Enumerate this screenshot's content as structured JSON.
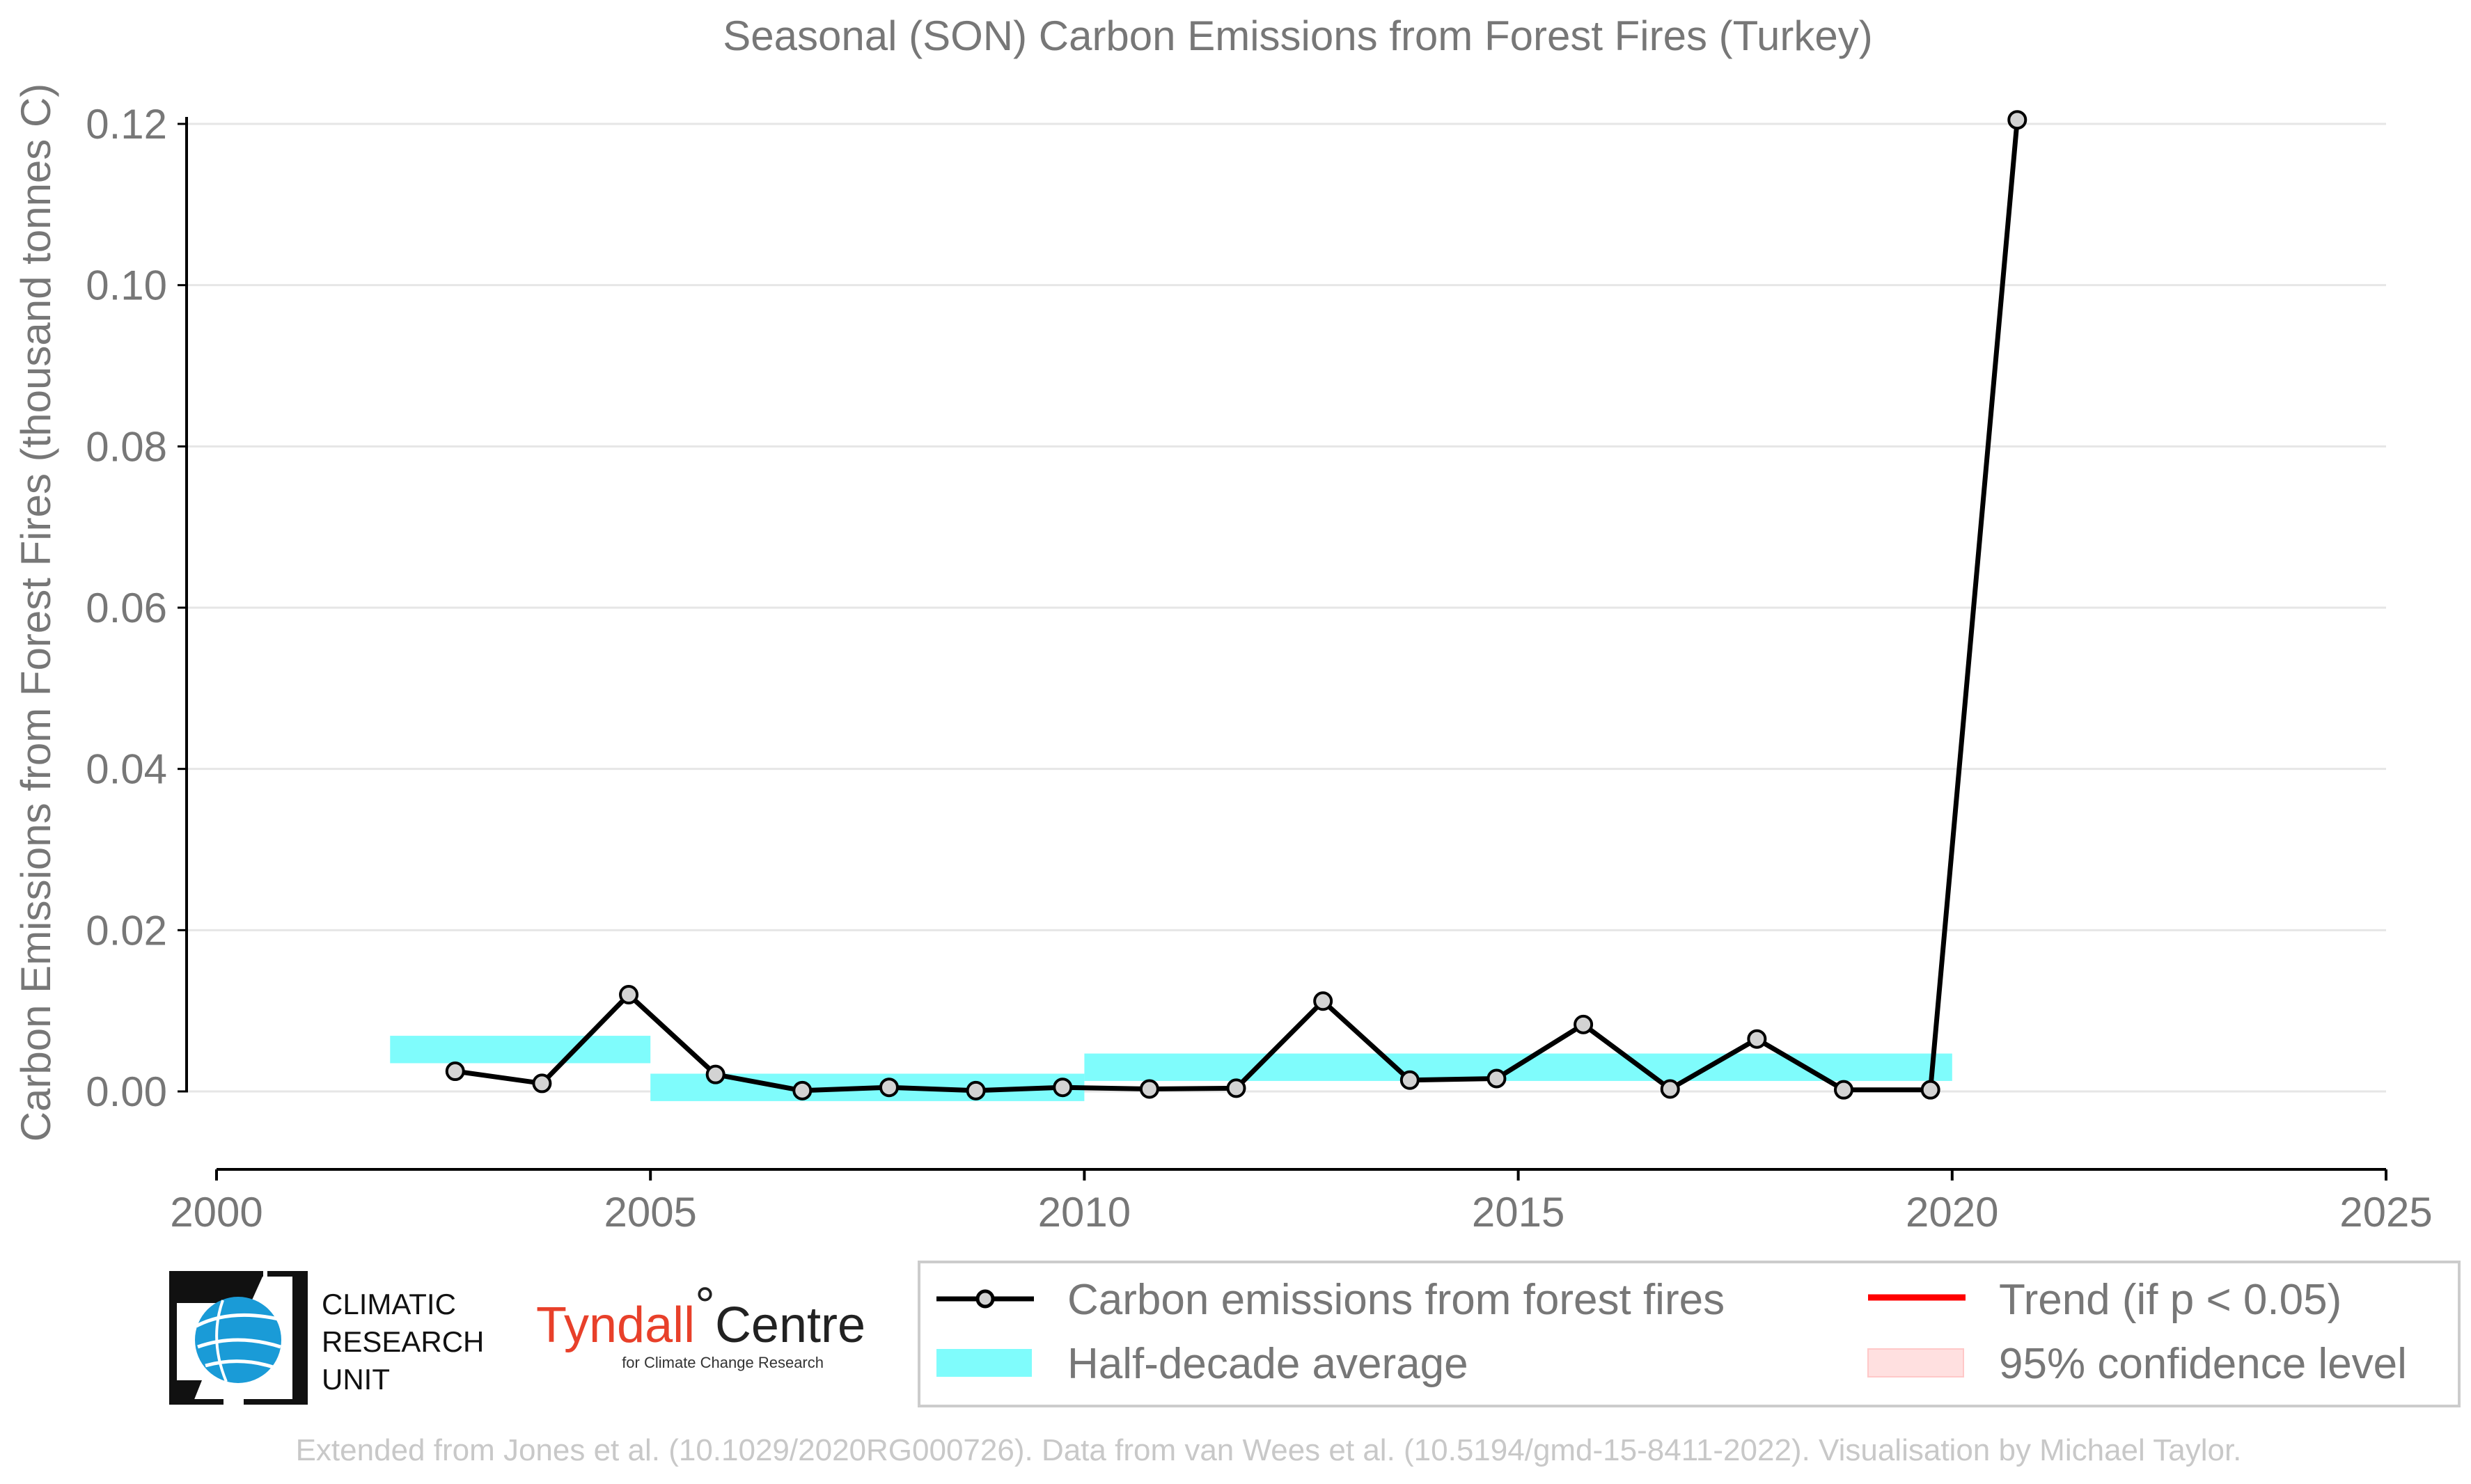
{
  "chart_data": {
    "type": "line",
    "title": "Seasonal (SON) Carbon Emissions from Forest Fires (Turkey)",
    "xlabel": "",
    "ylabel": "Carbon Emissions from Forest Fires (thousand tonnes C)",
    "xlim": [
      2000,
      2025
    ],
    "ylim": [
      -0.01,
      0.122
    ],
    "x_ticks": [
      2000,
      2005,
      2010,
      2015,
      2020,
      2025
    ],
    "x_tick_labels": [
      "2000",
      "2005",
      "2010",
      "2015",
      "2020",
      "2025"
    ],
    "y_ticks": [
      0.0,
      0.02,
      0.04,
      0.06,
      0.08,
      0.1,
      0.12
    ],
    "y_tick_labels": [
      "0.00",
      "0.02",
      "0.04",
      "0.06",
      "0.08",
      "0.10",
      "0.12"
    ],
    "grid": "horizontal",
    "legend_position": "bottom-right",
    "series": [
      {
        "name": "Carbon emissions from forest fires",
        "color": "#000000",
        "marker_fill": "#d3d3d3",
        "x": [
          2002.75,
          2003.75,
          2004.75,
          2005.75,
          2006.75,
          2007.75,
          2008.75,
          2009.75,
          2010.75,
          2011.75,
          2012.75,
          2013.75,
          2014.75,
          2015.75,
          2016.75,
          2017.75,
          2018.75,
          2019.75,
          2020.75
        ],
        "y": [
          0.0025,
          0.001,
          0.012,
          0.0021,
          0.0001,
          0.0005,
          0.0001,
          0.0005,
          0.0003,
          0.0004,
          0.0112,
          0.0014,
          0.0016,
          0.0083,
          0.0003,
          0.0065,
          0.0002,
          0.0002,
          0.1205
        ]
      }
    ],
    "half_decade_average": {
      "name": "Half-decade average",
      "color": "#7ffcfc",
      "segments": [
        {
          "x_start": 2002,
          "x_end": 2005,
          "y": 0.0052
        },
        {
          "x_start": 2005,
          "x_end": 2010,
          "y": 0.0005
        },
        {
          "x_start": 2010,
          "x_end": 2020,
          "y": 0.003
        }
      ]
    },
    "legend": [
      {
        "label": "Carbon emissions from forest fires",
        "kind": "line-marker",
        "color": "#000000"
      },
      {
        "label": "Half-decade average",
        "kind": "band",
        "color": "#7ffcfc"
      },
      {
        "label": "Trend (if p < 0.05)",
        "kind": "line",
        "color": "#ff0000"
      },
      {
        "label": "95% confidence level",
        "kind": "band",
        "color": "#ffe0e0"
      }
    ]
  },
  "logos": {
    "cru": {
      "line1": "CLIMATIC",
      "line2": "RESEARCH",
      "line3": "UNIT",
      "icon": "globe-icon",
      "color": "#1a9bd7"
    },
    "tyndall": {
      "main": "Tyndall",
      "degree": "°",
      "centre": "Centre",
      "sub": "for Climate Change Research"
    }
  },
  "footer": {
    "credit": "Extended from Jones et al. (10.1029/2020RG000726). Data from van Wees et al. (10.5194/gmd-15-8411-2022). Visualisation by Michael Taylor."
  }
}
